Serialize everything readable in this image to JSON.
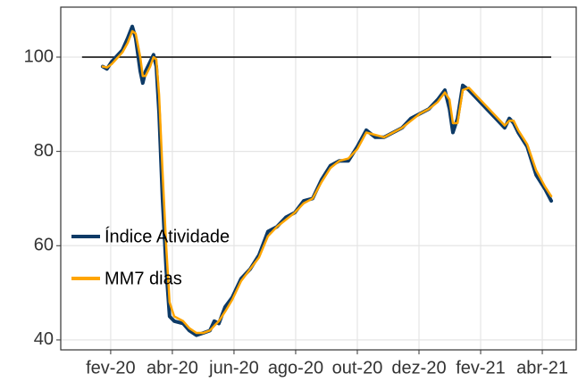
{
  "chart_data": {
    "type": "line",
    "x": [
      -0.26,
      -0.12,
      0.03,
      0.17,
      0.38,
      0.55,
      0.7,
      0.81,
      0.96,
      1.04,
      1.13,
      1.28,
      1.39,
      1.48,
      1.57,
      1.68,
      1.8,
      1.91,
      2.06,
      2.35,
      2.55,
      2.78,
      3.01,
      3.22,
      3.36,
      3.51,
      3.71,
      3.94,
      4.23,
      4.52,
      4.81,
      5.1,
      5.39,
      5.68,
      5.97,
      6.26,
      6.55,
      6.84,
      7.13,
      7.42,
      7.71,
      8.0,
      8.29,
      8.58,
      8.87,
      9.16,
      9.45,
      9.74,
      10.03,
      10.32,
      10.61,
      10.84,
      10.99,
      11.1,
      11.25,
      11.42,
      11.62,
      11.91,
      12.2,
      12.49,
      12.78,
      12.93,
      13.07,
      13.22,
      13.51,
      13.8,
      14.09,
      14.29
    ],
    "series": [
      {
        "name": "Índice Atividade",
        "color": "#0d3a66",
        "values": [
          98,
          97.5,
          99,
          100,
          101.5,
          104,
          106.5,
          104,
          97,
          94.5,
          97,
          99,
          100.5,
          98,
          88,
          70,
          55,
          45,
          44,
          43.5,
          42,
          41,
          41.5,
          42,
          44,
          43.5,
          47,
          49,
          53,
          55,
          58,
          63,
          64,
          66,
          67,
          69.5,
          70,
          74,
          77,
          78,
          78,
          81,
          84.5,
          83,
          83,
          84,
          85,
          87,
          88,
          89,
          91,
          93,
          89,
          84,
          87,
          94,
          93,
          91,
          89,
          87,
          85,
          87,
          86,
          84,
          81,
          75,
          72,
          69.5
        ]
      },
      {
        "name": "MM7 dias",
        "color": "#ffa500",
        "values": [
          98,
          97.8,
          98.5,
          99.5,
          101,
          103,
          105.5,
          105,
          100,
          96,
          96,
          98,
          100,
          99.5,
          92,
          76,
          60,
          48,
          45,
          44,
          42.5,
          41.5,
          41.5,
          42,
          43,
          44,
          46,
          48.5,
          52.5,
          55,
          57.5,
          62,
          64,
          65.5,
          67,
          69,
          70,
          73.5,
          76.5,
          78,
          78.5,
          80.5,
          84,
          83.5,
          83,
          84,
          85,
          86.5,
          88,
          89,
          90.5,
          92.5,
          91,
          86,
          86,
          93,
          93.5,
          91.5,
          89.5,
          87.5,
          85.5,
          86.5,
          86.5,
          84.5,
          81.5,
          76,
          72.5,
          70.5
        ]
      }
    ],
    "reference_line": 100,
    "xlim": [
      -1.62,
      15.1
    ],
    "xticks": [
      {
        "value": 0,
        "label": "fev-20"
      },
      {
        "value": 2,
        "label": "abr-20"
      },
      {
        "value": 4,
        "label": "jun-20"
      },
      {
        "value": 6,
        "label": "ago-20"
      },
      {
        "value": 8,
        "label": "out-20"
      },
      {
        "value": 10,
        "label": "dez-20"
      },
      {
        "value": 12,
        "label": "fev-21"
      },
      {
        "value": 14,
        "label": "abr-21"
      }
    ],
    "ylim": [
      37.9,
      110.6
    ],
    "yticks": [
      40,
      60,
      80,
      100
    ],
    "grid": true,
    "legend_position": "left"
  }
}
